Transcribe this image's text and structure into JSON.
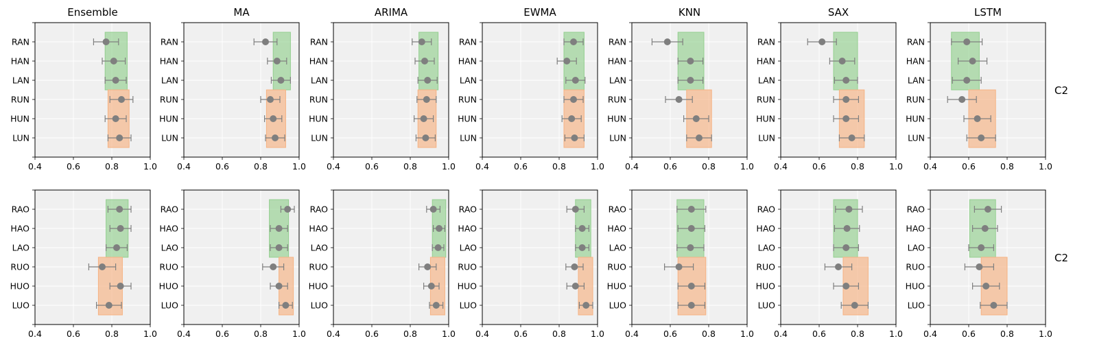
{
  "figure": {
    "row_labels": [
      "C2",
      "C2"
    ],
    "panel_titles": [
      "Ensemble",
      "MA",
      "ARIMA",
      "EWMA",
      "KNN",
      "SAX",
      "LSTM"
    ]
  },
  "colors": {
    "panel_bg": "#f0f0f0",
    "green_band": "#93cf8f",
    "orange_band": "#f6b282",
    "marker": "#7f7f7f",
    "grid": "#ffffff"
  },
  "chart_data": [
    {
      "type": "scatter",
      "subtype": "dot-errorbar-with-bands",
      "row": 0,
      "title": "Ensemble",
      "xlim": [
        0.4,
        1.0
      ],
      "xticks": [
        "0.4",
        "0.6",
        "0.8",
        "1.0"
      ],
      "categories": [
        "RAN",
        "HAN",
        "LAN",
        "RUN",
        "HUN",
        "LUN"
      ],
      "means": [
        0.77,
        0.81,
        0.82,
        0.85,
        0.82,
        0.84
      ],
      "errors": [
        0.065,
        0.06,
        0.055,
        0.06,
        0.055,
        0.06
      ],
      "bands": [
        {
          "color": "green",
          "x": [
            0.765,
            0.88
          ],
          "rows": [
            0,
            2
          ]
        },
        {
          "color": "orange",
          "x": [
            0.78,
            0.89
          ],
          "rows": [
            3,
            5
          ]
        }
      ]
    },
    {
      "type": "scatter",
      "subtype": "dot-errorbar-with-bands",
      "row": 0,
      "title": "MA",
      "xlim": [
        0.4,
        1.0
      ],
      "xticks": [
        "0.4",
        "0.6",
        "0.8",
        "1.0"
      ],
      "categories": [
        "RAN",
        "HAN",
        "LAN",
        "RUN",
        "HUN",
        "LUN"
      ],
      "means": [
        0.825,
        0.885,
        0.905,
        0.85,
        0.865,
        0.875
      ],
      "errors": [
        0.06,
        0.05,
        0.05,
        0.05,
        0.045,
        0.05
      ],
      "bands": [
        {
          "color": "green",
          "x": [
            0.865,
            0.955
          ],
          "rows": [
            0,
            2
          ]
        },
        {
          "color": "orange",
          "x": [
            0.83,
            0.93
          ],
          "rows": [
            3,
            5
          ]
        }
      ]
    },
    {
      "type": "scatter",
      "subtype": "dot-errorbar-with-bands",
      "row": 0,
      "title": "ARIMA",
      "xlim": [
        0.4,
        1.0
      ],
      "xticks": [
        "0.4",
        "0.6",
        "0.8",
        "1.0"
      ],
      "categories": [
        "RAN",
        "HAN",
        "LAN",
        "RUN",
        "HUN",
        "LUN"
      ],
      "means": [
        0.86,
        0.875,
        0.89,
        0.885,
        0.87,
        0.88
      ],
      "errors": [
        0.05,
        0.05,
        0.05,
        0.05,
        0.05,
        0.05
      ],
      "bands": [
        {
          "color": "green",
          "x": [
            0.845,
            0.945
          ],
          "rows": [
            0,
            2
          ]
        },
        {
          "color": "orange",
          "x": [
            0.84,
            0.935
          ],
          "rows": [
            3,
            5
          ]
        }
      ]
    },
    {
      "type": "scatter",
      "subtype": "dot-errorbar-with-bands",
      "row": 0,
      "title": "EWMA",
      "xlim": [
        0.4,
        1.0
      ],
      "xticks": [
        "0.4",
        "0.6",
        "0.8",
        "1.0"
      ],
      "categories": [
        "RAN",
        "HAN",
        "LAN",
        "RUN",
        "HUN",
        "LUN"
      ],
      "means": [
        0.875,
        0.84,
        0.885,
        0.875,
        0.865,
        0.88
      ],
      "errors": [
        0.05,
        0.05,
        0.05,
        0.05,
        0.05,
        0.05
      ],
      "bands": [
        {
          "color": "green",
          "x": [
            0.825,
            0.93
          ],
          "rows": [
            0,
            2
          ]
        },
        {
          "color": "orange",
          "x": [
            0.825,
            0.93
          ],
          "rows": [
            3,
            5
          ]
        }
      ]
    },
    {
      "type": "scatter",
      "subtype": "dot-errorbar-with-bands",
      "row": 0,
      "title": "KNN",
      "xlim": [
        0.4,
        1.0
      ],
      "xticks": [
        "0.4",
        "0.6",
        "0.8",
        "1.0"
      ],
      "categories": [
        "RAN",
        "HAN",
        "LAN",
        "RUN",
        "HUN",
        "LUN"
      ],
      "means": [
        0.585,
        0.705,
        0.705,
        0.645,
        0.735,
        0.75
      ],
      "errors": [
        0.08,
        0.065,
        0.065,
        0.07,
        0.065,
        0.065
      ],
      "bands": [
        {
          "color": "green",
          "x": [
            0.64,
            0.775
          ],
          "rows": [
            0,
            2
          ]
        },
        {
          "color": "orange",
          "x": [
            0.685,
            0.815
          ],
          "rows": [
            3,
            5
          ]
        }
      ]
    },
    {
      "type": "scatter",
      "subtype": "dot-errorbar-with-bands",
      "row": 0,
      "title": "SAX",
      "xlim": [
        0.4,
        1.0
      ],
      "xticks": [
        "0.4",
        "0.6",
        "0.8",
        "1.0"
      ],
      "categories": [
        "RAN",
        "HAN",
        "LAN",
        "RUN",
        "HUN",
        "LUN"
      ],
      "means": [
        0.615,
        0.72,
        0.74,
        0.74,
        0.74,
        0.77
      ],
      "errors": [
        0.075,
        0.065,
        0.06,
        0.065,
        0.065,
        0.065
      ],
      "bands": [
        {
          "color": "green",
          "x": [
            0.675,
            0.8
          ],
          "rows": [
            0,
            2
          ]
        },
        {
          "color": "orange",
          "x": [
            0.705,
            0.835
          ],
          "rows": [
            3,
            5
          ]
        }
      ]
    },
    {
      "type": "scatter",
      "subtype": "dot-errorbar-with-bands",
      "row": 0,
      "title": "LSTM",
      "xlim": [
        0.4,
        1.0
      ],
      "xticks": [
        "0.4",
        "0.6",
        "0.8",
        "1.0"
      ],
      "categories": [
        "RAN",
        "HAN",
        "LAN",
        "RUN",
        "HUN",
        "LUN"
      ],
      "means": [
        0.59,
        0.62,
        0.59,
        0.565,
        0.645,
        0.665
      ],
      "errors": [
        0.08,
        0.075,
        0.075,
        0.075,
        0.07,
        0.075
      ],
      "bands": [
        {
          "color": "green",
          "x": [
            0.51,
            0.655
          ],
          "rows": [
            0,
            2
          ]
        },
        {
          "color": "orange",
          "x": [
            0.6,
            0.74
          ],
          "rows": [
            3,
            5
          ]
        }
      ]
    },
    {
      "type": "scatter",
      "subtype": "dot-errorbar-with-bands",
      "row": 1,
      "title": "",
      "xlim": [
        0.4,
        1.0
      ],
      "xticks": [
        "0.4",
        "0.6",
        "0.8",
        "1.0"
      ],
      "categories": [
        "RAO",
        "HAO",
        "LAO",
        "RUO",
        "HUO",
        "LUO"
      ],
      "means": [
        0.84,
        0.845,
        0.825,
        0.75,
        0.845,
        0.785
      ],
      "errors": [
        0.06,
        0.055,
        0.055,
        0.07,
        0.055,
        0.065
      ],
      "bands": [
        {
          "color": "green",
          "x": [
            0.77,
            0.885
          ],
          "rows": [
            0,
            2
          ]
        },
        {
          "color": "orange",
          "x": [
            0.73,
            0.855
          ],
          "rows": [
            3,
            5
          ]
        }
      ]
    },
    {
      "type": "scatter",
      "subtype": "dot-errorbar-with-bands",
      "row": 1,
      "title": "",
      "xlim": [
        0.4,
        1.0
      ],
      "xticks": [
        "0.4",
        "0.6",
        "0.8",
        "1.0"
      ],
      "categories": [
        "RAO",
        "HAO",
        "LAO",
        "RUO",
        "HUO",
        "LUO"
      ],
      "means": [
        0.94,
        0.895,
        0.895,
        0.865,
        0.895,
        0.93
      ],
      "errors": [
        0.035,
        0.045,
        0.045,
        0.055,
        0.045,
        0.035
      ],
      "bands": [
        {
          "color": "green",
          "x": [
            0.845,
            0.945
          ],
          "rows": [
            0,
            2
          ]
        },
        {
          "color": "orange",
          "x": [
            0.895,
            0.97
          ],
          "rows": [
            3,
            5
          ]
        }
      ]
    },
    {
      "type": "scatter",
      "subtype": "dot-errorbar-with-bands",
      "row": 1,
      "title": "",
      "xlim": [
        0.4,
        1.0
      ],
      "xticks": [
        "0.4",
        "0.6",
        "0.8",
        "1.0"
      ],
      "categories": [
        "RAO",
        "HAO",
        "LAO",
        "RUO",
        "HUO",
        "LUO"
      ],
      "means": [
        0.92,
        0.95,
        0.945,
        0.89,
        0.91,
        0.935
      ],
      "errors": [
        0.035,
        0.03,
        0.03,
        0.045,
        0.04,
        0.035
      ],
      "bands": [
        {
          "color": "green",
          "x": [
            0.915,
            0.985
          ],
          "rows": [
            0,
            2
          ]
        },
        {
          "color": "orange",
          "x": [
            0.905,
            0.98
          ],
          "rows": [
            3,
            5
          ]
        }
      ]
    },
    {
      "type": "scatter",
      "subtype": "dot-errorbar-with-bands",
      "row": 1,
      "title": "",
      "xlim": [
        0.4,
        1.0
      ],
      "xticks": [
        "0.4",
        "0.6",
        "0.8",
        "1.0"
      ],
      "categories": [
        "RAO",
        "HAO",
        "LAO",
        "RUO",
        "HUO",
        "LUO"
      ],
      "means": [
        0.885,
        0.92,
        0.92,
        0.88,
        0.885,
        0.94
      ],
      "errors": [
        0.045,
        0.035,
        0.035,
        0.045,
        0.045,
        0.035
      ],
      "bands": [
        {
          "color": "green",
          "x": [
            0.885,
            0.965
          ],
          "rows": [
            0,
            2
          ]
        },
        {
          "color": "orange",
          "x": [
            0.9,
            0.975
          ],
          "rows": [
            3,
            5
          ]
        }
      ]
    },
    {
      "type": "scatter",
      "subtype": "dot-errorbar-with-bands",
      "row": 1,
      "title": "",
      "xlim": [
        0.4,
        1.0
      ],
      "xticks": [
        "0.4",
        "0.6",
        "0.8",
        "1.0"
      ],
      "categories": [
        "RAO",
        "HAO",
        "LAO",
        "RUO",
        "HUO",
        "LUO"
      ],
      "means": [
        0.71,
        0.71,
        0.705,
        0.645,
        0.71,
        0.71
      ],
      "errors": [
        0.075,
        0.07,
        0.07,
        0.075,
        0.07,
        0.07
      ],
      "bands": [
        {
          "color": "green",
          "x": [
            0.635,
            0.775
          ],
          "rows": [
            0,
            2
          ]
        },
        {
          "color": "orange",
          "x": [
            0.64,
            0.785
          ],
          "rows": [
            3,
            5
          ]
        }
      ]
    },
    {
      "type": "scatter",
      "subtype": "dot-errorbar-with-bands",
      "row": 1,
      "title": "",
      "xlim": [
        0.4,
        1.0
      ],
      "xticks": [
        "0.4",
        "0.6",
        "0.8",
        "1.0"
      ],
      "categories": [
        "RAO",
        "HAO",
        "LAO",
        "RUO",
        "HUO",
        "LUO"
      ],
      "means": [
        0.755,
        0.745,
        0.74,
        0.7,
        0.74,
        0.785
      ],
      "errors": [
        0.07,
        0.065,
        0.065,
        0.07,
        0.065,
        0.07
      ],
      "bands": [
        {
          "color": "green",
          "x": [
            0.675,
            0.8
          ],
          "rows": [
            0,
            2
          ]
        },
        {
          "color": "orange",
          "x": [
            0.725,
            0.855
          ],
          "rows": [
            3,
            5
          ]
        }
      ]
    },
    {
      "type": "scatter",
      "subtype": "dot-errorbar-with-bands",
      "row": 1,
      "title": "",
      "xlim": [
        0.4,
        1.0
      ],
      "xticks": [
        "0.4",
        "0.6",
        "0.8",
        "1.0"
      ],
      "categories": [
        "RAO",
        "HAO",
        "LAO",
        "RUO",
        "HUO",
        "LUO"
      ],
      "means": [
        0.7,
        0.685,
        0.665,
        0.655,
        0.69,
        0.73
      ],
      "errors": [
        0.07,
        0.065,
        0.065,
        0.075,
        0.07,
        0.07
      ],
      "bands": [
        {
          "color": "green",
          "x": [
            0.605,
            0.74
          ],
          "rows": [
            0,
            2
          ]
        },
        {
          "color": "orange",
          "x": [
            0.665,
            0.8
          ],
          "rows": [
            3,
            5
          ]
        }
      ]
    }
  ]
}
